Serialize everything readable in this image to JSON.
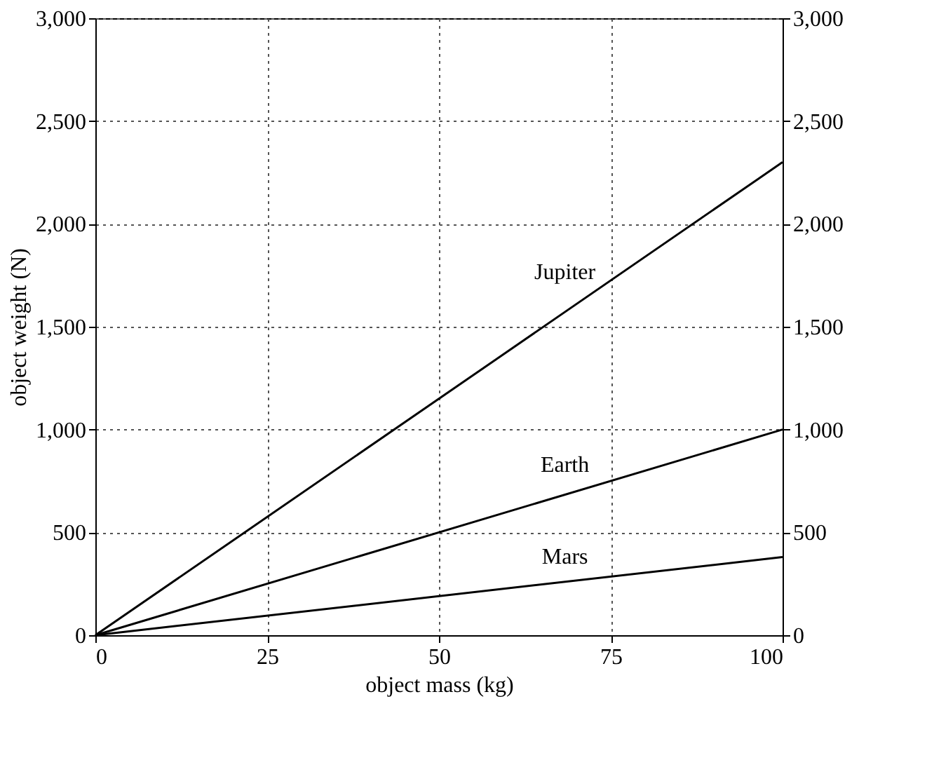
{
  "chart_data": {
    "type": "line",
    "xlabel": "object mass (kg)",
    "ylabel": "object weight (N)",
    "x": [
      0,
      100
    ],
    "xlim": [
      0,
      100
    ],
    "xticks": [
      0,
      25,
      50,
      75,
      100
    ],
    "ylim": [
      0,
      3000
    ],
    "yticks": [
      0,
      500,
      {
        "value": 1000,
        "label": "1,000"
      },
      {
        "value": 1500,
        "label": "1,500"
      },
      {
        "value": 2000,
        "label": "2,000"
      },
      {
        "value": 2500,
        "label": "2,500"
      },
      {
        "value": 3000,
        "label": "3,000"
      }
    ],
    "y2lim": [
      0,
      3000
    ],
    "y2ticks": [
      0,
      500,
      {
        "value": 1000,
        "label": "1,000"
      },
      {
        "value": 1500,
        "label": "1,500"
      },
      {
        "value": 2000,
        "label": "2,000"
      },
      {
        "value": 2500,
        "label": "2,500"
      },
      {
        "value": 3000,
        "label": "3,000"
      }
    ],
    "grid": true,
    "marker": "none",
    "line_style": "solid",
    "series": [
      {
        "name": "Jupiter",
        "color": "#000000",
        "values": [
          0,
          2300
        ]
      },
      {
        "name": "Earth",
        "color": "#000000",
        "values": [
          0,
          1000
        ]
      },
      {
        "name": "Mars",
        "color": "#000000",
        "values": [
          0,
          380
        ]
      }
    ]
  }
}
